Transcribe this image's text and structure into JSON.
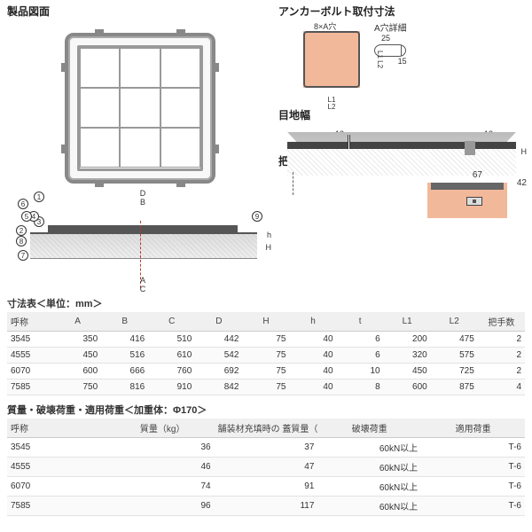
{
  "titles": {
    "product_drawing": "製品図面",
    "anchor": "アンカーボルト取付寸法",
    "hole_detail": "A穴詳細",
    "mejihaba": "目地幅",
    "handle": "把手部寸法",
    "dim_table": "寸法表＜単位：mm＞",
    "load_table": "質量・破壊荷重・適用荷重＜加重体：Φ170＞"
  },
  "anchor": {
    "holes": "8×A穴",
    "L1": "L1",
    "L2": "L2",
    "L1r": "L1",
    "L2r": "L2"
  },
  "hole": {
    "w": "25",
    "h": "15"
  },
  "meji": {
    "gap": "12",
    "H": "H"
  },
  "handle": {
    "w": "67",
    "h": "42"
  },
  "section": {
    "callouts": [
      "1",
      "2",
      "3",
      "4",
      "5",
      "6",
      "7",
      "8",
      "9"
    ],
    "D": "D",
    "B": "B",
    "A": "A",
    "C": "C",
    "h": "h",
    "H": "H"
  },
  "dim_table": {
    "headers": [
      "呼称",
      "A",
      "B",
      "C",
      "D",
      "H",
      "h",
      "t",
      "L1",
      "L2",
      "把手数"
    ],
    "rows": [
      [
        "3545",
        "350",
        "416",
        "510",
        "442",
        "75",
        "40",
        "6",
        "200",
        "475",
        "2"
      ],
      [
        "4555",
        "450",
        "516",
        "610",
        "542",
        "75",
        "40",
        "6",
        "320",
        "575",
        "2"
      ],
      [
        "6070",
        "600",
        "666",
        "760",
        "692",
        "75",
        "40",
        "10",
        "450",
        "725",
        "2"
      ],
      [
        "7585",
        "750",
        "816",
        "910",
        "842",
        "75",
        "40",
        "8",
        "600",
        "875",
        "4"
      ]
    ]
  },
  "load_table": {
    "headers": [
      "呼称",
      "質量（kg）",
      "舗装材充填時の\n蓋質量（約・kg）",
      "破壊荷重",
      "適用荷重"
    ],
    "rows": [
      [
        "3545",
        "36",
        "37",
        "60kN以上",
        "T-6"
      ],
      [
        "4555",
        "46",
        "47",
        "60kN以上",
        "T-6"
      ],
      [
        "6070",
        "74",
        "91",
        "60kN以上",
        "T-6"
      ],
      [
        "7585",
        "96",
        "117",
        "60kN以上",
        "T-6"
      ]
    ]
  }
}
